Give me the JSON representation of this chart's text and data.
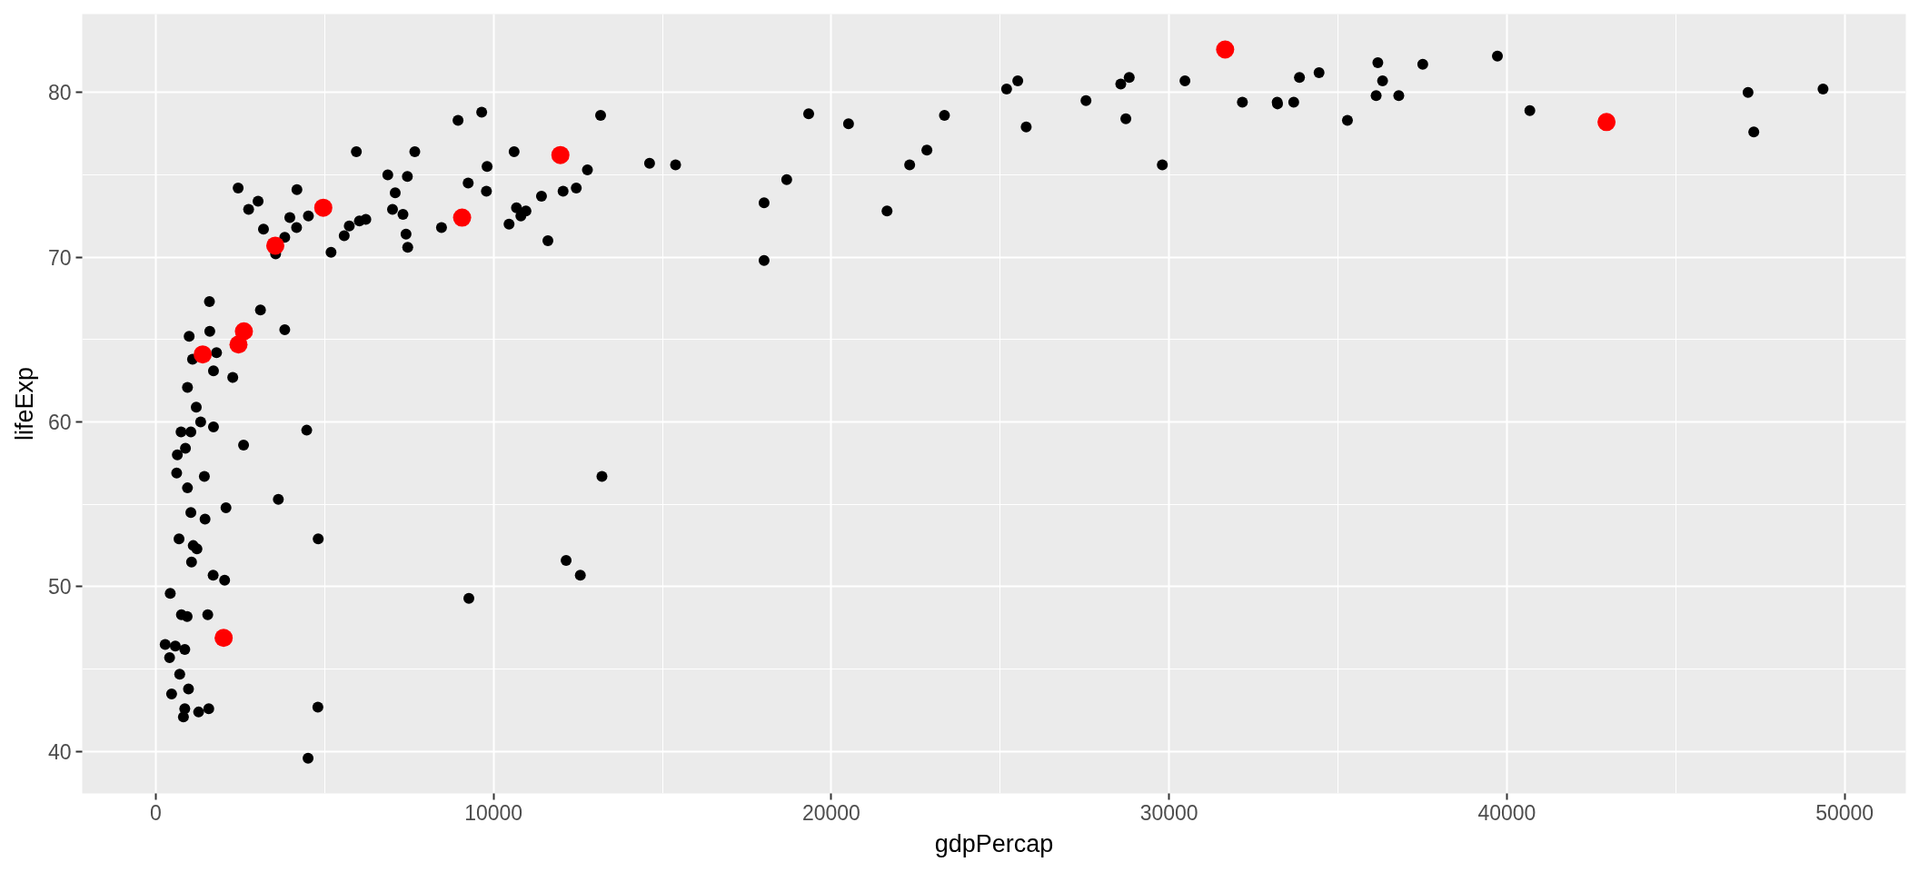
{
  "chart_data": {
    "type": "scatter",
    "xlabel": "gdpPercap",
    "ylabel": "lifeExp",
    "marker": "circle",
    "grid": true,
    "xlim": [
      -2176,
      51811
    ],
    "ylim": [
      37.46,
      84.75
    ],
    "xticks": [
      0,
      10000,
      20000,
      30000,
      40000,
      50000
    ],
    "yticks": [
      40,
      50,
      60,
      70,
      80
    ],
    "series": [
      {
        "color": "#000000",
        "x": [
          970,
          5940,
          6220,
          4800,
          12780,
          34440,
          36130,
          29800,
          33690,
          1440,
          3820,
          7450,
          12570,
          10680,
          1220,
          430,
          1710,
          2040,
          36320,
          710,
          1700,
          13170,
          7010,
          990,
          280,
          3630,
          9650,
          1540,
          14620,
          8950,
          22830,
          35280,
          2080,
          6030,
          6870,
          5580,
          5730,
          12150,
          640,
          690,
          33210,
          30470,
          13210,
          750,
          32170,
          1330,
          27540,
          5190,
          940,
          580,
          1200,
          3550,
          39720,
          18010,
          36180,
          11610,
          4470,
          40680,
          25520,
          28570,
          7320,
          4520,
          1460,
          1590,
          23350,
          47310,
          10460,
          1570,
          410,
          12060,
          1040,
          760,
          12450,
          1040,
          1800,
          10960,
          3100,
          9250,
          3820,
          820,
          940,
          4810,
          1090,
          36800,
          25190,
          2750,
          620,
          49360,
          22320,
          9810,
          4170,
          7410,
          3190,
          15390,
          20510,
          19330,
          7670,
          10810,
          860,
          1600,
          21650,
          1710,
          9790,
          860,
          47140,
          18680,
          25770,
          930,
          9270,
          28820,
          3970,
          2600,
          4510,
          33860,
          37510,
          4180,
          28720,
          1110,
          7460,
          880,
          18010,
          7090,
          8460,
          1060,
          33200,
          10610,
          11420,
          2440,
          3030,
          2280,
          1270,
          470
        ],
        "values": [
          43.8,
          76.4,
          72.3,
          42.7,
          75.3,
          81.2,
          79.8,
          75.6,
          79.4,
          56.7,
          65.6,
          74.9,
          50.7,
          73.0,
          52.3,
          49.6,
          59.7,
          50.4,
          80.7,
          44.7,
          50.7,
          78.6,
          72.9,
          65.2,
          46.5,
          55.3,
          78.8,
          48.3,
          75.7,
          78.3,
          76.5,
          78.3,
          54.8,
          72.2,
          75.0,
          71.3,
          71.9,
          51.6,
          58.0,
          52.9,
          79.3,
          80.7,
          56.7,
          59.4,
          79.4,
          60.0,
          79.5,
          70.3,
          56.0,
          46.4,
          60.9,
          70.2,
          82.2,
          73.3,
          81.8,
          71.0,
          59.5,
          78.9,
          80.7,
          80.5,
          72.6,
          72.5,
          54.1,
          67.3,
          78.6,
          77.6,
          72.0,
          42.6,
          45.7,
          74.0,
          59.4,
          48.3,
          74.2,
          54.5,
          64.2,
          72.8,
          66.8,
          74.5,
          71.2,
          42.1,
          62.1,
          52.9,
          63.8,
          79.8,
          80.2,
          72.9,
          56.9,
          80.2,
          75.6,
          75.5,
          71.8,
          71.4,
          71.7,
          75.6,
          78.1,
          78.7,
          76.4,
          72.5,
          46.2,
          65.5,
          72.8,
          63.1,
          74.0,
          42.6,
          80.0,
          74.7,
          77.9,
          48.2,
          49.3,
          80.9,
          72.4,
          58.6,
          39.6,
          80.9,
          81.7,
          74.1,
          78.4,
          52.5,
          70.6,
          58.4,
          69.8,
          73.9,
          71.8,
          51.5,
          79.4,
          76.4,
          73.7,
          74.2,
          73.4,
          62.7,
          42.4,
          43.5
        ]
      },
      {
        "color": "#ff0000",
        "x": [
          1390,
          9070,
          4960,
          2450,
          3540,
          31660,
          11980,
          2010,
          2610,
          42950
        ],
        "values": [
          64.1,
          72.4,
          73.0,
          64.7,
          70.7,
          82.6,
          76.2,
          46.9,
          65.5,
          78.2
        ]
      }
    ]
  }
}
